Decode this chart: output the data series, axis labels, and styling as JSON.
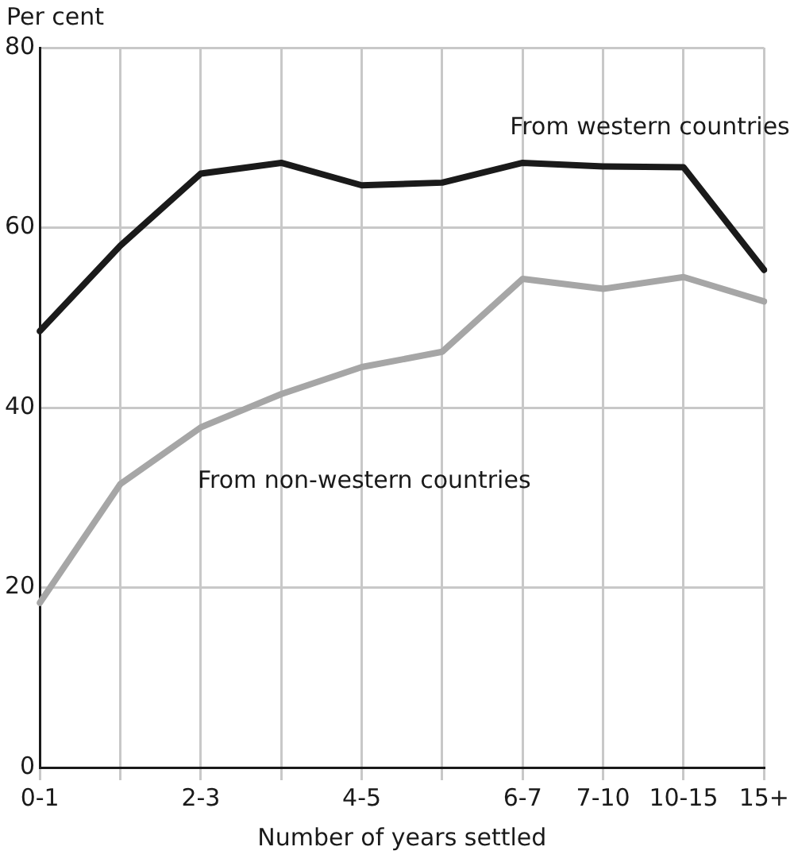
{
  "chart_data": {
    "type": "line",
    "ylabel": "Per cent",
    "xlabel": "Number of years settled",
    "categories": [
      "0-1",
      null,
      "2-3",
      null,
      "4-5",
      null,
      "6-7",
      "7-10",
      "10-15",
      "15+"
    ],
    "series": [
      {
        "name": "From western countries",
        "color": "#1a1a1a",
        "values": [
          48.5,
          58,
          66,
          67.2,
          64.7,
          65,
          67.2,
          66.8,
          66.7,
          55.3
        ]
      },
      {
        "name": "From non-western countries",
        "color": "#a6a6a6",
        "values": [
          18.3,
          31.5,
          37.8,
          41.5,
          44.5,
          46.2,
          54.3,
          53.2,
          54.5,
          51.8
        ]
      }
    ],
    "ylim": [
      0,
      80
    ],
    "yticks": [
      0,
      20,
      40,
      60,
      80
    ],
    "grid": true,
    "legend": false,
    "marker": "none",
    "line_style": "solid"
  }
}
